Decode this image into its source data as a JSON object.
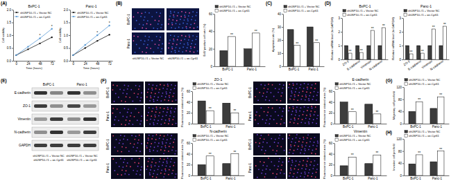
{
  "figure": {
    "panel_labels": [
      "(A)",
      "(B)",
      "(C)",
      "(D)",
      "(E)",
      "(F)",
      "(G)",
      "(H)"
    ],
    "edu_images": {
      "rows": [
        "BxPC-1",
        "Panc-1"
      ],
      "columns": [
        "shUSP10-#1 + Vector NC",
        "shUSP10-#1 + oe-Cyr61"
      ]
    },
    "if_images": [
      {
        "rows": [
          "BxPC-1",
          "Panc-1"
        ]
      },
      {
        "rows": [
          "BxPC-1",
          "Panc-1"
        ]
      },
      {
        "rows": [
          "BxPC-1",
          "Panc-1"
        ]
      },
      {
        "rows": [
          "BxPC-1",
          "Panc-1"
        ]
      }
    ],
    "blot": {
      "proteins": [
        "E-cadherin",
        "ZO-1",
        "Vimentin",
        "N-cadherin",
        "GAPDH"
      ],
      "cell_lines": [
        "BxPC-1",
        "Panc-1"
      ],
      "lanes": [
        "shUSP10-#1 + Vector NC",
        "shUSP10-#1 + oe-Cyr61"
      ]
    }
  },
  "chart_data": [
    {
      "type": "line",
      "title": "BxPC-1",
      "x_label": "Time (hours)",
      "y_label": "Cell viability",
      "x": [
        0,
        24,
        48,
        72
      ],
      "xlim": [
        -6,
        78
      ],
      "xticks": [
        0,
        24,
        48,
        72
      ],
      "ylim": [
        0,
        2
      ],
      "yticks": [
        {
          "value": 0,
          "label": "0.0"
        },
        0.5,
        {
          "value": 1,
          "label": "1.0"
        },
        1.5,
        {
          "value": 2,
          "label": "2.0"
        }
      ],
      "legend": "top-left",
      "series": [
        {
          "name": "shUSP10-#1 + Vector NC",
          "color": "#1a1a1a",
          "marker": "circle",
          "values": [
            0.22,
            0.45,
            0.68,
            0.92
          ]
        },
        {
          "name": "shUSP10-#1 + oe-Cyr61",
          "color": "#5b9bd5",
          "marker": "circle",
          "values": [
            0.22,
            0.55,
            0.88,
            1.25
          ]
        }
      ],
      "annotations": [
        {
          "text": "*",
          "series": 1,
          "index": 2
        },
        {
          "text": "*",
          "series": 1,
          "index": 3
        }
      ]
    },
    {
      "type": "line",
      "title": "Panc-1",
      "x_label": "Time (hours)",
      "y_label": "Cell viability",
      "x": [
        0,
        24,
        48,
        72
      ],
      "xlim": [
        -6,
        78
      ],
      "xticks": [
        0,
        24,
        48,
        72
      ],
      "ylim": [
        0,
        2
      ],
      "yticks": [
        {
          "value": 0,
          "label": "0.0"
        },
        0.5,
        {
          "value": 1,
          "label": "1.0"
        },
        1.5,
        {
          "value": 2,
          "label": "2.0"
        }
      ],
      "legend": "top-left",
      "series": [
        {
          "name": "shUSP10-#1 + Vector NC",
          "color": "#1a1a1a",
          "marker": "circle",
          "values": [
            0.22,
            0.5,
            0.78,
            1.02
          ]
        },
        {
          "name": "shUSP10-#1 + oe-Cyr61",
          "color": "#5b9bd5",
          "marker": "circle",
          "values": [
            0.22,
            0.62,
            1.0,
            1.38
          ]
        }
      ],
      "annotations": [
        {
          "text": "*",
          "series": 1,
          "index": 2
        },
        {
          "text": "*",
          "series": 1,
          "index": 3
        }
      ]
    },
    {
      "type": "bar",
      "y_label": "EdU positive cell rate (%)",
      "categories": [
        "BxPC-1",
        "Panc-1"
      ],
      "ylim": [
        0,
        60
      ],
      "yticks": [
        0,
        20,
        40,
        60
      ],
      "legend": "top",
      "series": [
        {
          "name": "shUSP10-#1 + Vector NC",
          "color": "#3c3c3c",
          "values": [
            18,
            20
          ]
        },
        {
          "name": "shUSP10-#1 + oe-Cyr61",
          "color": "#ffffff",
          "values": [
            34,
            38
          ]
        }
      ],
      "annotations": [
        {
          "text": "**",
          "series": 1,
          "index": 0
        },
        {
          "text": "**",
          "series": 1,
          "index": 1
        }
      ]
    },
    {
      "type": "bar",
      "y_label": "Apoptosis rate (%)",
      "categories": [
        "BxPC-1",
        "Panc-1"
      ],
      "ylim": [
        0,
        40
      ],
      "yticks": [
        0,
        10,
        20,
        30,
        40
      ],
      "legend": "top",
      "series": [
        {
          "name": "shUSP10-#1 + Vector NC",
          "color": "#3c3c3c",
          "values": [
            28,
            30
          ]
        },
        {
          "name": "shUSP10-#1 + oe-Cyr61",
          "color": "#ffffff",
          "values": [
            16,
            18
          ]
        }
      ],
      "annotations": [
        {
          "text": "**",
          "series": 1,
          "index": 0
        },
        {
          "text": "**",
          "series": 1,
          "index": 1
        }
      ]
    },
    {
      "type": "bar",
      "title": "BxPC-1",
      "y_label": "Relative mRNA level (to GAPDH)",
      "categories": [
        "ZO-1",
        "E-cadherin",
        "Vimentin",
        "N-cadherin"
      ],
      "ylim": [
        0,
        3
      ],
      "yticks": [
        0,
        1,
        2,
        3
      ],
      "legend": "top",
      "series": [
        {
          "name": "shUSP10-#1 + Vector NC",
          "color": "#3c3c3c",
          "values": [
            1,
            1,
            1,
            1
          ]
        },
        {
          "name": "shUSP10-#1 + oe-Cyr61",
          "color": "#ffffff",
          "values": [
            0.45,
            0.5,
            2.1,
            2.3
          ]
        }
      ],
      "annotations": [
        {
          "text": "**",
          "series": 1,
          "index": 0
        },
        {
          "text": "**",
          "series": 1,
          "index": 1
        },
        {
          "text": "**",
          "series": 1,
          "index": 2
        },
        {
          "text": "**",
          "series": 1,
          "index": 3
        }
      ]
    },
    {
      "type": "bar",
      "title": "Panc-1",
      "y_label": "Relative mRNA level (to GAPDH)",
      "categories": [
        "ZO-1",
        "E-cadherin",
        "Vimentin",
        "N-cadherin"
      ],
      "ylim": [
        0,
        3
      ],
      "yticks": [
        0,
        1,
        2,
        3
      ],
      "legend": "top",
      "series": [
        {
          "name": "shUSP10-#1 + Vector NC",
          "color": "#3c3c3c",
          "values": [
            1,
            1,
            1,
            1
          ]
        },
        {
          "name": "shUSP10-#1 + oe-Cyr61",
          "color": "#ffffff",
          "values": [
            0.4,
            0.45,
            2.2,
            2.4
          ]
        }
      ],
      "annotations": [
        {
          "text": "**",
          "series": 1,
          "index": 0
        },
        {
          "text": "**",
          "series": 1,
          "index": 1
        },
        {
          "text": "**",
          "series": 1,
          "index": 2
        },
        {
          "text": "**",
          "series": 1,
          "index": 3
        }
      ]
    },
    {
      "type": "bar",
      "title": "ZO-1",
      "y_label": "Fluorescence stained area (%)",
      "categories": [
        "BxPC-1",
        "Panc-1"
      ],
      "ylim": [
        0,
        60
      ],
      "yticks": [
        0,
        20,
        40,
        60
      ],
      "legend": "top",
      "series": [
        {
          "name": "shUSP10-#1 + Vector NC",
          "color": "#3c3c3c",
          "values": [
            42,
            38
          ]
        },
        {
          "name": "shUSP10-#1 + oe-Cyr61",
          "color": "#ffffff",
          "values": [
            24,
            20
          ]
        }
      ],
      "annotations": [
        {
          "text": "**",
          "series": 1,
          "index": 0
        },
        {
          "text": "**",
          "series": 1,
          "index": 1
        }
      ]
    },
    {
      "type": "bar",
      "title": "E-cadherin",
      "y_label": "Fluorescence stained area (%)",
      "categories": [
        "BxPC-1",
        "Panc-1"
      ],
      "ylim": [
        0,
        60
      ],
      "yticks": [
        0,
        20,
        40,
        60
      ],
      "legend": "top",
      "series": [
        {
          "name": "shUSP10-#1 + Vector NC",
          "color": "#3c3c3c",
          "values": [
            40,
            36
          ]
        },
        {
          "name": "shUSP10-#1 + oe-Cyr61",
          "color": "#ffffff",
          "values": [
            22,
            18
          ]
        }
      ],
      "annotations": [
        {
          "text": "**",
          "series": 1,
          "index": 0
        },
        {
          "text": "**",
          "series": 1,
          "index": 1
        }
      ]
    },
    {
      "type": "bar",
      "title": "N-cadherin",
      "y_label": "Fluorescence stained area (%)",
      "categories": [
        "BxPC-1",
        "Panc-1"
      ],
      "ylim": [
        0,
        60
      ],
      "yticks": [
        0,
        20,
        40,
        60
      ],
      "legend": "top",
      "series": [
        {
          "name": "shUSP10-#1 + Vector NC",
          "color": "#3c3c3c",
          "values": [
            20,
            22
          ]
        },
        {
          "name": "shUSP10-#1 + oe-Cyr61",
          "color": "#ffffff",
          "values": [
            36,
            40
          ]
        }
      ],
      "annotations": [
        {
          "text": "**",
          "series": 1,
          "index": 0
        },
        {
          "text": "**",
          "series": 1,
          "index": 1
        }
      ]
    },
    {
      "type": "bar",
      "title": "Vimentin",
      "y_label": "Fluorescence stained area (%)",
      "categories": [
        "BxPC-1",
        "Panc-1"
      ],
      "ylim": [
        0,
        60
      ],
      "yticks": [
        0,
        20,
        40,
        60
      ],
      "legend": "top",
      "series": [
        {
          "name": "shUSP10-#1 + Vector NC",
          "color": "#3c3c3c",
          "values": [
            18,
            22
          ]
        },
        {
          "name": "shUSP10-#1 + oe-Cyr61",
          "color": "#ffffff",
          "values": [
            34,
            38
          ]
        }
      ],
      "annotations": [
        {
          "text": "**",
          "series": 1,
          "index": 0
        },
        {
          "text": "**",
          "series": 1,
          "index": 1
        }
      ]
    },
    {
      "type": "bar",
      "y_label": "Migratory cell per field",
      "categories": [
        "BxPC-1",
        "Panc-1"
      ],
      "ylim": [
        0,
        120
      ],
      "yticks": [
        0,
        40,
        80,
        120
      ],
      "legend": "top",
      "series": [
        {
          "name": "shUSP10-#1 + Vector NC",
          "color": "#3c3c3c",
          "values": [
            40,
            50
          ]
        },
        {
          "name": "shUSP10-#1 + oe-Cyr61",
          "color": "#ffffff",
          "values": [
            72,
            88
          ]
        }
      ],
      "annotations": [
        {
          "text": "**",
          "series": 1,
          "index": 0
        },
        {
          "text": "**",
          "series": 1,
          "index": 1
        }
      ]
    },
    {
      "type": "bar",
      "y_label": "Invasive cell per field",
      "categories": [
        "BxPC-1",
        "Panc-1"
      ],
      "ylim": [
        0,
        120
      ],
      "yticks": [
        0,
        40,
        80,
        120
      ],
      "legend": "top",
      "series": [
        {
          "name": "shUSP10-#1 + Vector NC",
          "color": "#3c3c3c",
          "values": [
            38,
            45
          ]
        },
        {
          "name": "shUSP10-#1 + oe-Cyr61",
          "color": "#ffffff",
          "values": [
            68,
            80
          ]
        }
      ],
      "annotations": [
        {
          "text": "**",
          "series": 1,
          "index": 0
        },
        {
          "text": "**",
          "series": 1,
          "index": 1
        }
      ]
    }
  ]
}
